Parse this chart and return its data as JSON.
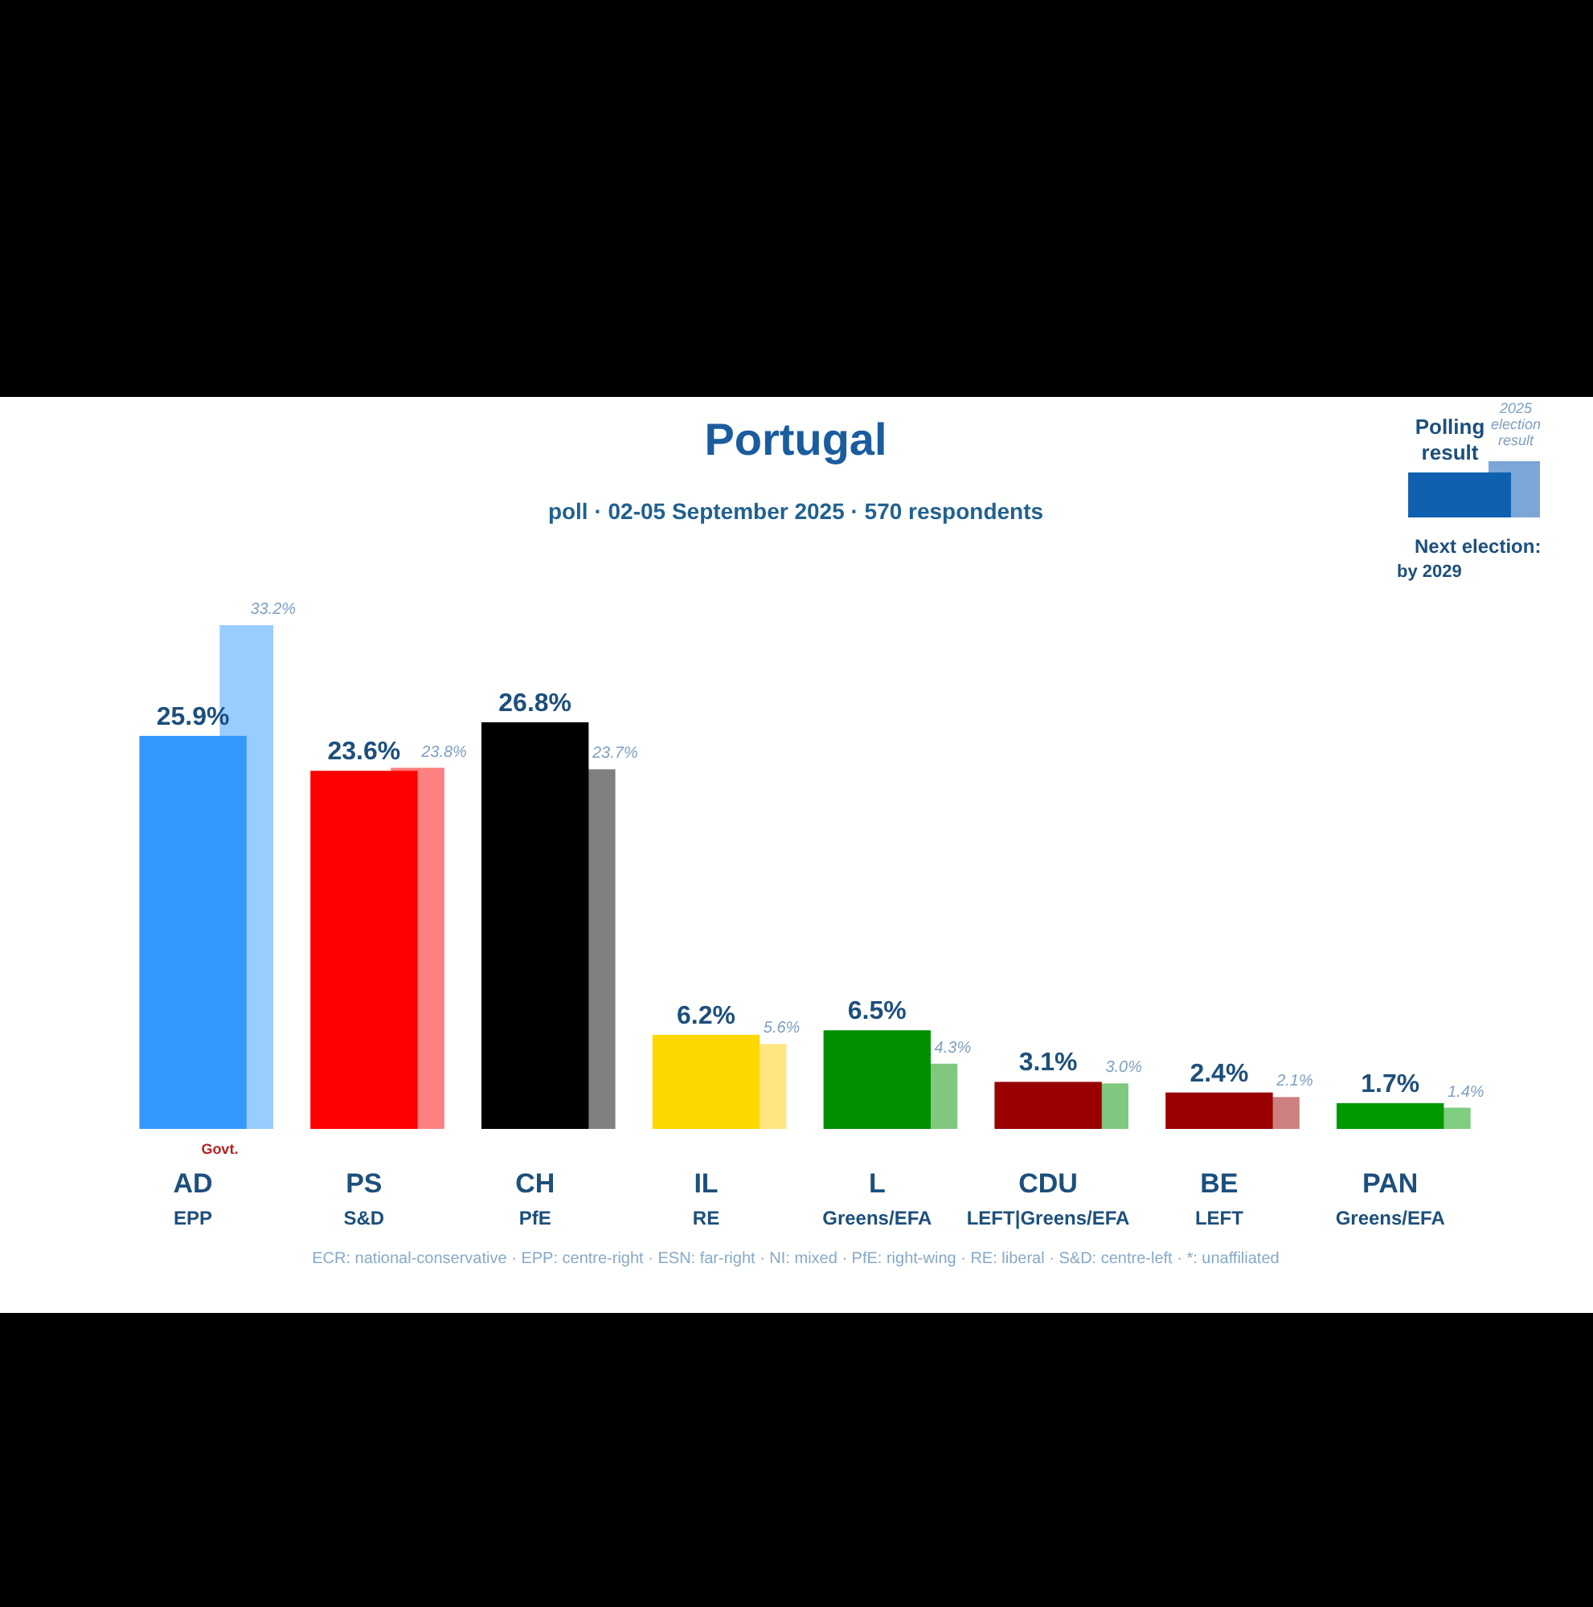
{
  "chart_data": {
    "type": "bar",
    "title": "Portugal",
    "subtitle": "poll · 02-05 September 2025 · 570 respondents",
    "categories": [
      "AD\nEPP",
      "PS\nS&D",
      "CH\nPfE",
      "IL\nRE",
      "L\nGreens/EFA",
      "CDU\nLEFT|Greens/EFA",
      "BE\nLEFT",
      "PAN\nGreens/EFA"
    ],
    "series": [
      {
        "colors": [
          "#3399ff",
          "#ff0000",
          "#000000",
          "#ffd700",
          "#009000",
          "#990000",
          "#990000",
          "#009900"
        ],
        "values": [
          25.9,
          23.6,
          26.8,
          6.2,
          6.5,
          3.1,
          2.4,
          1.7
        ],
        "value_labels": [
          "25.9%",
          "23.6%",
          "26.8%",
          "6.2%",
          "6.5%",
          "3.1%",
          "2.4%",
          "1.7%"
        ]
      },
      {
        "colors": [
          "#99ccff",
          "#ff8080",
          "#808080",
          "#ffe680",
          "#80c880",
          "#80c880",
          "#cc8080",
          "#80cc80"
        ],
        "values": [
          33.2,
          23.8,
          23.7,
          5.6,
          4.3,
          3.0,
          2.1,
          1.4
        ],
        "value_labels": [
          "33.2%",
          "23.8%",
          "23.7%",
          "5.6%",
          "4.3%",
          "3.0%",
          "2.1%",
          "1.4%"
        ]
      }
    ],
    "annotations": [
      "Govt.",
      "Polling result",
      "2025 election result",
      "Next election:\nby 2029",
      "ECR: national-conservative · EPP: centre-right · ESN: far-right · NI: mixed · PfE: right-wing · RE: liberal · S&D: centre-left · *: unaffiliated"
    ]
  }
}
